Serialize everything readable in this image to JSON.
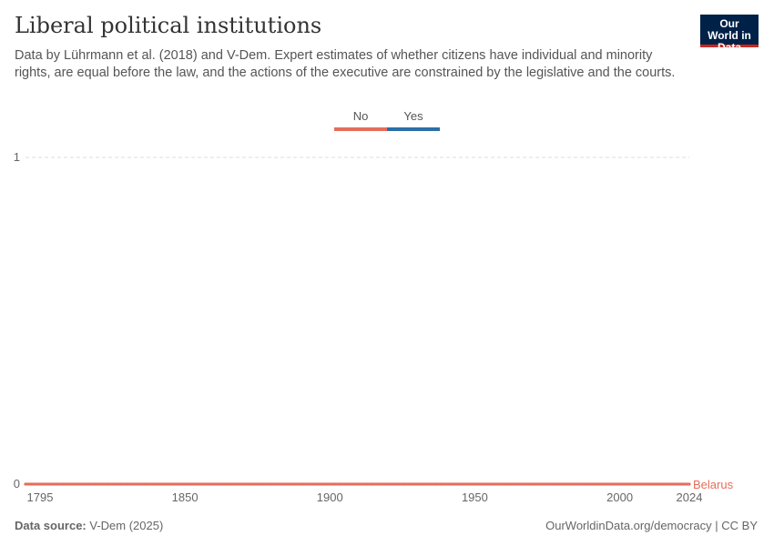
{
  "header": {
    "title": "Liberal political institutions",
    "subtitle": "Data by Lührmann et al. (2018) and V-Dem. Expert estimates of whether citizens have individual and minority rights, are equal before the law, and the actions of the executive are constrained by the legislative and the courts.",
    "logo": "Our World in Data"
  },
  "legend": [
    {
      "label": "No",
      "color": "#e56e5a"
    },
    {
      "label": "Yes",
      "color": "#2c6ea7"
    }
  ],
  "chart_data": {
    "type": "line",
    "xlim": [
      1795,
      2024
    ],
    "ylim": [
      0,
      1
    ],
    "x_ticks": [
      "1795",
      "1850",
      "1900",
      "1950",
      "2000",
      "2024"
    ],
    "y_ticks": [
      "0",
      "1"
    ],
    "series": [
      {
        "name": "Belarus",
        "color": "#e56e5a",
        "points": [
          [
            1795,
            0
          ],
          [
            2024,
            0
          ]
        ]
      }
    ],
    "grid": "horizontal dashed"
  },
  "footer": {
    "source_label": "Data source:",
    "source": " V-Dem (2025)",
    "right": "OurWorldinData.org/democracy | CC BY"
  }
}
